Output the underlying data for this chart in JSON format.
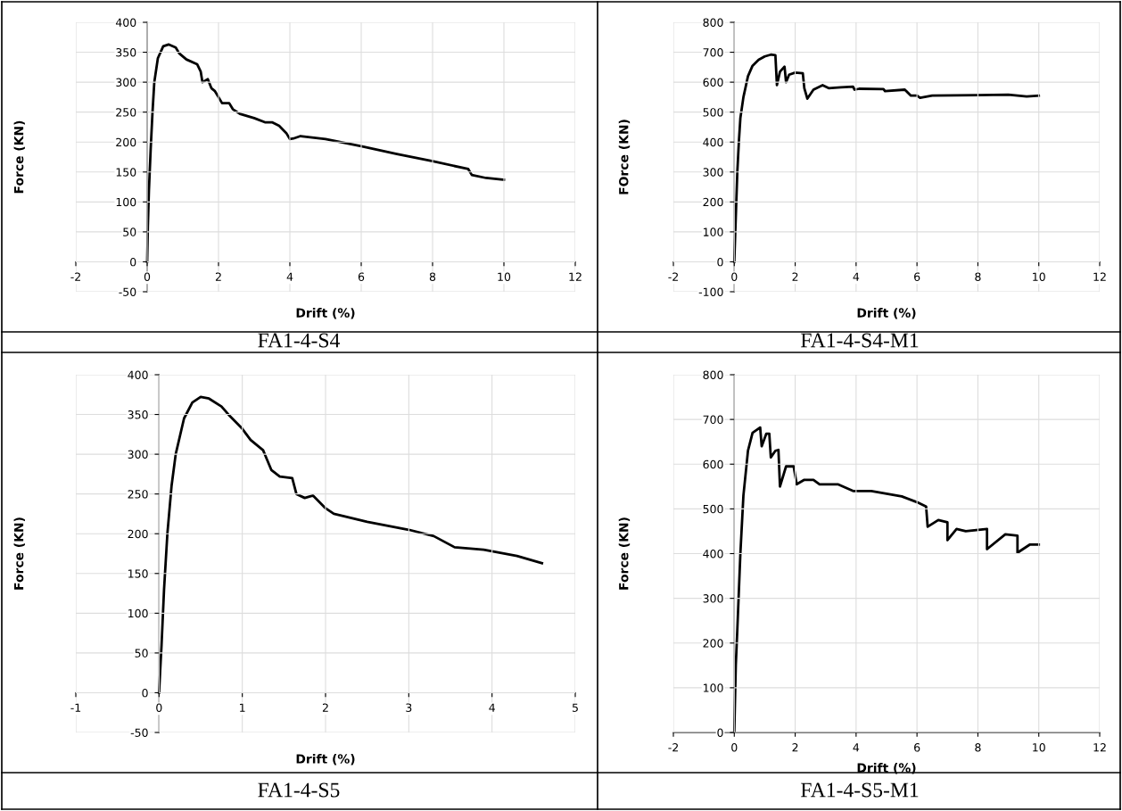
{
  "chart_data": [
    {
      "type": "line",
      "title": "FA1-4-S4",
      "xlabel": "Drift (%)",
      "ylabel": "Force (KN)",
      "xlim": [
        -2,
        12
      ],
      "ylim": [
        -50,
        400
      ],
      "xticks": [
        -2,
        0,
        2,
        4,
        6,
        8,
        10,
        12
      ],
      "yticks": [
        -50,
        0,
        50,
        100,
        150,
        200,
        250,
        300,
        350,
        400
      ],
      "grid": true,
      "legend": false,
      "marker": "none",
      "line_style": "solid",
      "series": [
        {
          "color": "#000000",
          "x": [
            0,
            0.02,
            0.05,
            0.1,
            0.15,
            0.2,
            0.3,
            0.45,
            0.6,
            0.8,
            0.9,
            1.1,
            1.4,
            1.5,
            1.55,
            1.7,
            1.8,
            1.9,
            2.0,
            2.1,
            2.3,
            2.4,
            2.6,
            3.0,
            3.3,
            3.5,
            3.7,
            3.9,
            4.0,
            4.1,
            4.3,
            5,
            6,
            7,
            8,
            9,
            9.1,
            9.5,
            10
          ],
          "values": [
            0,
            60,
            120,
            190,
            250,
            300,
            340,
            360,
            363,
            358,
            348,
            338,
            330,
            318,
            300,
            305,
            290,
            285,
            275,
            265,
            265,
            255,
            247,
            240,
            233,
            233,
            227,
            215,
            205,
            206,
            210,
            205,
            193,
            180,
            168,
            155,
            145,
            140,
            137
          ]
        }
      ]
    },
    {
      "type": "line",
      "title": "FA1-4-S4-M1",
      "xlabel": "Drift (%)",
      "ylabel": "FOrce (KN)",
      "xlim": [
        -2,
        12
      ],
      "ylim": [
        -100,
        800
      ],
      "xticks": [
        -2,
        0,
        2,
        4,
        6,
        8,
        10,
        12
      ],
      "yticks": [
        -100,
        0,
        100,
        200,
        300,
        400,
        500,
        600,
        700,
        800
      ],
      "grid": true,
      "legend": false,
      "marker": "none",
      "line_style": "solid",
      "series": [
        {
          "color": "#000000",
          "x": [
            0,
            0.05,
            0.1,
            0.15,
            0.2,
            0.3,
            0.45,
            0.6,
            0.8,
            1.0,
            1.2,
            1.35,
            1.4,
            1.5,
            1.65,
            1.7,
            1.8,
            2.0,
            2.25,
            2.3,
            2.4,
            2.6,
            2.9,
            3.1,
            3.5,
            3.9,
            3.95,
            4.1,
            4.9,
            4.95,
            5.6,
            5.8,
            6.0,
            6.1,
            6.5,
            8,
            9,
            9.6,
            10
          ],
          "values": [
            0,
            150,
            300,
            400,
            480,
            550,
            620,
            655,
            675,
            686,
            692,
            690,
            590,
            635,
            652,
            600,
            625,
            632,
            630,
            580,
            545,
            575,
            590,
            580,
            583,
            585,
            575,
            578,
            577,
            570,
            575,
            555,
            555,
            548,
            555,
            557,
            558,
            552,
            555
          ]
        }
      ]
    },
    {
      "type": "line",
      "title": "FA1-4-S5",
      "xlabel": "Drift (%)",
      "ylabel": "Force (KN)",
      "xlim": [
        -1,
        5
      ],
      "ylim": [
        -50,
        400
      ],
      "xticks": [
        -1,
        0,
        1,
        2,
        3,
        4,
        5
      ],
      "yticks": [
        -50,
        0,
        50,
        100,
        150,
        200,
        250,
        300,
        350,
        400
      ],
      "grid": true,
      "legend": false,
      "marker": "none",
      "line_style": "solid",
      "series": [
        {
          "color": "#000000",
          "x": [
            0,
            0.03,
            0.06,
            0.1,
            0.15,
            0.2,
            0.3,
            0.4,
            0.5,
            0.6,
            0.75,
            0.85,
            1.0,
            1.1,
            1.25,
            1.35,
            1.45,
            1.6,
            1.65,
            1.75,
            1.85,
            2.0,
            2.1,
            2.5,
            3.0,
            3.3,
            3.55,
            3.9,
            4.3,
            4.6
          ],
          "values": [
            0,
            60,
            130,
            200,
            260,
            300,
            345,
            365,
            372,
            370,
            360,
            348,
            332,
            318,
            305,
            280,
            272,
            270,
            250,
            245,
            248,
            232,
            225,
            215,
            205,
            197,
            183,
            180,
            172,
            163
          ]
        }
      ]
    },
    {
      "type": "line",
      "title": "FA1-4-S5-M1",
      "xlabel": "Drift (%)",
      "ylabel": "Force (KN)",
      "xlim": [
        -2,
        12
      ],
      "ylim": [
        0,
        800
      ],
      "xticks": [
        -2,
        0,
        2,
        4,
        6,
        8,
        10,
        12
      ],
      "yticks": [
        0,
        100,
        200,
        300,
        400,
        500,
        600,
        700,
        800
      ],
      "grid": true,
      "legend": false,
      "marker": "none",
      "line_style": "solid",
      "series": [
        {
          "color": "#000000",
          "x": [
            0,
            0.05,
            0.1,
            0.2,
            0.3,
            0.45,
            0.6,
            0.85,
            0.9,
            1.05,
            1.15,
            1.2,
            1.35,
            1.45,
            1.5,
            1.7,
            1.95,
            2.05,
            2.3,
            2.6,
            2.8,
            3.4,
            3.9,
            4.5,
            5.5,
            6.0,
            6.3,
            6.35,
            6.7,
            7.0,
            7.0,
            7.3,
            7.6,
            8.3,
            8.3,
            8.9,
            9.3,
            9.3,
            9.7,
            10
          ],
          "values": [
            0,
            150,
            230,
            400,
            530,
            630,
            670,
            682,
            640,
            668,
            668,
            615,
            630,
            632,
            550,
            595,
            595,
            555,
            565,
            565,
            555,
            555,
            540,
            540,
            528,
            515,
            505,
            460,
            475,
            470,
            430,
            455,
            450,
            455,
            410,
            443,
            440,
            402,
            420,
            420
          ]
        }
      ]
    }
  ]
}
